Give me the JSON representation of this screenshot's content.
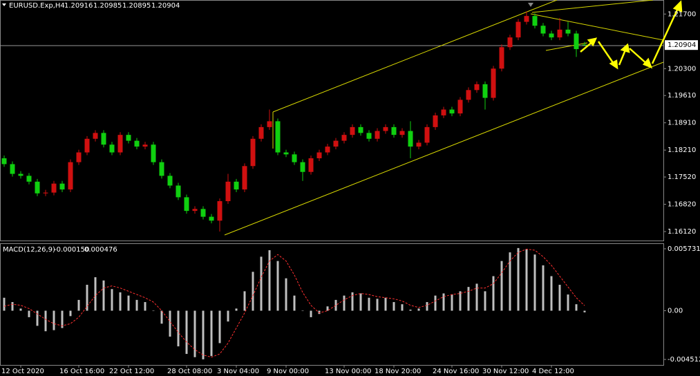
{
  "chart_data": [
    {
      "type": "candlestick",
      "title": "EURUSD.Exp,H4",
      "categories": [
        null,
        null,
        "12 Oct 2020",
        null,
        null,
        null,
        null,
        null,
        null,
        "16 Oct 16:00",
        null,
        null,
        null,
        null,
        null,
        "22 Oct 12:00",
        null,
        null,
        null,
        null,
        null,
        null,
        "28 Oct 08:00",
        null,
        null,
        null,
        null,
        null,
        "3 Nov 04:00",
        null,
        null,
        null,
        null,
        null,
        "9 Nov 00:00",
        null,
        null,
        null,
        null,
        null,
        null,
        "13 Nov 00:00",
        null,
        null,
        null,
        null,
        null,
        "18 Nov 20:00",
        null,
        null,
        null,
        null,
        null,
        null,
        "24 Nov 16:00",
        null,
        null,
        null,
        null,
        null,
        "30 Nov 12:00",
        null,
        null,
        null,
        null,
        null,
        "4 Dec 12:00",
        null,
        null,
        null,
        null
      ],
      "open": [
        1.18,
        1.1785,
        1.176,
        1.1755,
        1.174,
        1.171,
        1.1712,
        1.1735,
        1.172,
        1.179,
        1.1815,
        1.185,
        1.1865,
        1.1835,
        1.1815,
        1.186,
        1.1845,
        1.183,
        1.1835,
        1.179,
        1.1755,
        1.173,
        1.17,
        1.1665,
        1.167,
        1.165,
        1.164,
        1.169,
        1.174,
        1.172,
        1.178,
        1.185,
        1.188,
        1.1895,
        1.1815,
        1.181,
        1.179,
        1.1765,
        1.18,
        1.1815,
        1.183,
        1.1845,
        1.186,
        1.188,
        1.1865,
        1.185,
        1.187,
        1.188,
        1.186,
        1.187,
        1.183,
        1.184,
        1.188,
        1.191,
        1.1925,
        1.1915,
        1.195,
        1.1975,
        1.199,
        1.1955,
        1.203,
        1.2085,
        1.211,
        1.215,
        1.2165,
        1.214,
        1.212,
        1.211,
        1.213,
        1.212,
        1.20916
      ],
      "high": [
        1.1807,
        1.1792,
        1.1767,
        1.1762,
        1.1747,
        1.1719,
        1.1742,
        1.1742,
        1.1797,
        1.1822,
        1.1857,
        1.1872,
        1.1872,
        1.1842,
        1.1867,
        1.1867,
        1.1852,
        1.1842,
        1.1842,
        1.1797,
        1.1762,
        1.1737,
        1.1707,
        1.1677,
        1.1677,
        1.1657,
        1.1697,
        1.176,
        1.1747,
        1.1787,
        1.1857,
        1.1887,
        1.1925,
        1.1902,
        1.1822,
        1.1817,
        1.1797,
        1.1807,
        1.1822,
        1.1837,
        1.1852,
        1.1867,
        1.1887,
        1.1887,
        1.1872,
        1.1877,
        1.1887,
        1.1887,
        1.1877,
        1.1895,
        1.1847,
        1.1887,
        1.1917,
        1.1932,
        1.1932,
        1.1957,
        1.1982,
        1.1997,
        1.1997,
        1.2037,
        1.2092,
        1.2117,
        1.2157,
        1.2177,
        1.2172,
        1.2147,
        1.2127,
        1.216,
        1.215,
        1.2127,
        1.20985
      ],
      "low": [
        1.1778,
        1.1753,
        1.1748,
        1.1733,
        1.1703,
        1.1703,
        1.1705,
        1.1713,
        1.1713,
        1.1783,
        1.1808,
        1.1843,
        1.1828,
        1.1808,
        1.1808,
        1.1838,
        1.1823,
        1.1823,
        1.1783,
        1.1748,
        1.1723,
        1.1693,
        1.1658,
        1.1658,
        1.1643,
        1.1633,
        1.1612,
        1.1683,
        1.1713,
        1.1713,
        1.1773,
        1.1843,
        1.1873,
        1.1808,
        1.1803,
        1.1783,
        1.1742,
        1.1758,
        1.1793,
        1.1808,
        1.1823,
        1.1838,
        1.1853,
        1.1858,
        1.1843,
        1.1843,
        1.1863,
        1.1853,
        1.1853,
        1.18,
        1.1823,
        1.1833,
        1.1873,
        1.1903,
        1.1908,
        1.1908,
        1.1943,
        1.1968,
        1.1925,
        1.1948,
        1.2023,
        1.2078,
        1.2103,
        1.2143,
        1.2133,
        1.2113,
        1.2103,
        1.2103,
        1.2113,
        1.206,
        1.20895
      ],
      "close": [
        1.1785,
        1.176,
        1.1755,
        1.174,
        1.171,
        1.1712,
        1.1735,
        1.172,
        1.179,
        1.1815,
        1.185,
        1.1865,
        1.1835,
        1.1815,
        1.186,
        1.1845,
        1.183,
        1.1835,
        1.179,
        1.1755,
        1.173,
        1.17,
        1.1665,
        1.167,
        1.165,
        1.164,
        1.169,
        1.174,
        1.172,
        1.178,
        1.185,
        1.188,
        1.1895,
        1.1815,
        1.181,
        1.179,
        1.1765,
        1.18,
        1.1815,
        1.183,
        1.1845,
        1.186,
        1.188,
        1.1865,
        1.185,
        1.187,
        1.188,
        1.186,
        1.187,
        1.183,
        1.184,
        1.188,
        1.191,
        1.1925,
        1.1915,
        1.195,
        1.1975,
        1.199,
        1.1955,
        1.203,
        1.2085,
        1.211,
        1.215,
        1.2165,
        1.214,
        1.212,
        1.211,
        1.213,
        1.212,
        1.208,
        1.20904
      ],
      "up_color": "#d01010",
      "down_color": "#10d010",
      "ylim": [
        1.1589,
        1.2206
      ],
      "yticks": [
        {
          "value": 1.217,
          "label": "1.21700"
        },
        {
          "value": 1.203,
          "label": "1.20300"
        },
        {
          "value": 1.1961,
          "label": "1.19610"
        },
        {
          "value": 1.1891,
          "label": "1.18910"
        },
        {
          "value": 1.1821,
          "label": "1.18210"
        },
        {
          "value": 1.1752,
          "label": "1.17520"
        },
        {
          "value": 1.1682,
          "label": "1.16820"
        },
        {
          "value": 1.1612,
          "label": "1.16120"
        }
      ]
    },
    {
      "type": "macd",
      "title": "MACD(12,26,9)",
      "header_values": [
        {
          "value": -0.00015,
          "label": "-0.000150"
        },
        0.000476
      ],
      "histogram": [
        0.0012,
        0.0008,
        0.0002,
        -0.0006,
        -0.0014,
        -0.0019,
        -0.0018,
        -0.0016,
        -0.0005,
        0.001,
        0.0024,
        0.0031,
        0.0028,
        0.002,
        0.0017,
        0.0014,
        0.001,
        0.0008,
        0.0,
        -0.0012,
        -0.0024,
        -0.0033,
        -0.004,
        -0.0043,
        -0.0045,
        -0.0042,
        -0.003,
        -0.001,
        0.0002,
        0.0018,
        0.0036,
        0.005,
        0.0056,
        0.0046,
        0.003,
        0.0014,
        0.0,
        -0.0006,
        -0.0003,
        0.0004,
        0.001,
        0.0014,
        0.0017,
        0.0016,
        0.0012,
        0.0011,
        0.0012,
        0.0008,
        0.0006,
        0.0001,
        0.0002,
        0.0008,
        0.0014,
        0.0016,
        0.0015,
        0.0018,
        0.0022,
        0.0025,
        0.0018,
        0.0032,
        0.0046,
        0.0054,
        0.0058,
        0.0057,
        0.0052,
        0.0042,
        0.0032,
        0.0024,
        0.0015,
        0.0006,
        -0.00015
      ],
      "signal": [
        0.0004,
        0.0006,
        0.0005,
        0.0002,
        -0.0003,
        -0.0008,
        -0.0012,
        -0.0014,
        -0.0012,
        -0.0006,
        0.0004,
        0.0014,
        0.0021,
        0.0023,
        0.0021,
        0.0018,
        0.0015,
        0.0012,
        0.0008,
        0.0,
        -0.001,
        -0.002,
        -0.0029,
        -0.0036,
        -0.0041,
        -0.0043,
        -0.004,
        -0.003,
        -0.0016,
        -0.0002,
        0.0014,
        0.0031,
        0.0046,
        0.0052,
        0.0046,
        0.0033,
        0.0017,
        0.0005,
        -0.0002,
        0.0,
        0.0005,
        0.001,
        0.0014,
        0.0016,
        0.0015,
        0.0013,
        0.0012,
        0.0011,
        0.0009,
        0.0005,
        0.0003,
        0.0005,
        0.0009,
        0.0013,
        0.0015,
        0.0016,
        0.0018,
        0.0021,
        0.0021,
        0.0025,
        0.0035,
        0.0046,
        0.0054,
        0.0057,
        0.0056,
        0.005,
        0.0042,
        0.0032,
        0.0022,
        0.0012,
        0.000476
      ],
      "histogram_color": "#c0c0c0",
      "signal_color": "#ff3030",
      "ylim": [
        -0.00502,
        0.00624
      ],
      "yticks": [
        0.005731,
        {
          "value": 0,
          "label": "0.00"
        },
        -0.004512
      ]
    }
  ]
}
